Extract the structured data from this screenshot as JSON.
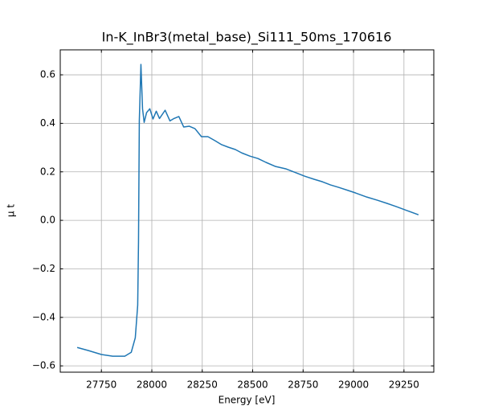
{
  "chart_data": {
    "type": "line",
    "title": "In-K_InBr3(metal_base)_Si111_50ms_170616",
    "xlabel": "Energy [eV]",
    "ylabel": "μ t",
    "x": [
      27630,
      27686,
      27750,
      27806,
      27866,
      27898,
      27918,
      27930,
      27934,
      27938,
      27946,
      27954,
      27962,
      27974,
      27990,
      28006,
      28022,
      28038,
      28066,
      28090,
      28110,
      28134,
      28158,
      28186,
      28214,
      28246,
      28278,
      28314,
      28346,
      28378,
      28414,
      28446,
      28486,
      28526,
      28566,
      28614,
      28666,
      28706,
      28758,
      28806,
      28846,
      28886,
      28926,
      28974,
      29010,
      29066,
      29118,
      29166,
      29214,
      29266,
      29322
    ],
    "series": [
      {
        "name": "μ t",
        "color": "#1f77b4",
        "values": [
          -0.524,
          -0.537,
          -0.553,
          -0.56,
          -0.56,
          -0.544,
          -0.484,
          -0.35,
          -0.09,
          0.41,
          0.643,
          0.46,
          0.404,
          0.444,
          0.46,
          0.418,
          0.45,
          0.42,
          0.454,
          0.41,
          0.42,
          0.428,
          0.385,
          0.388,
          0.378,
          0.345,
          0.345,
          0.328,
          0.312,
          0.302,
          0.292,
          0.278,
          0.265,
          0.255,
          0.239,
          0.222,
          0.212,
          0.199,
          0.182,
          0.169,
          0.159,
          0.146,
          0.136,
          0.123,
          0.113,
          0.096,
          0.083,
          0.07,
          0.056,
          0.04,
          0.023
        ]
      }
    ],
    "xlim": [
      27546,
      29398
    ],
    "ylim": [
      -0.626,
      0.703
    ],
    "xticks": [
      27750,
      28000,
      28250,
      28500,
      28750,
      29000,
      29250
    ],
    "yticks": [
      {
        "value": -0.6,
        "label": "−0.6"
      },
      {
        "value": -0.4,
        "label": "−0.4"
      },
      {
        "value": -0.2,
        "label": "−0.2"
      },
      {
        "value": 0,
        "label": "0.0"
      },
      0.2,
      0.4,
      0.6
    ],
    "grid": true
  }
}
